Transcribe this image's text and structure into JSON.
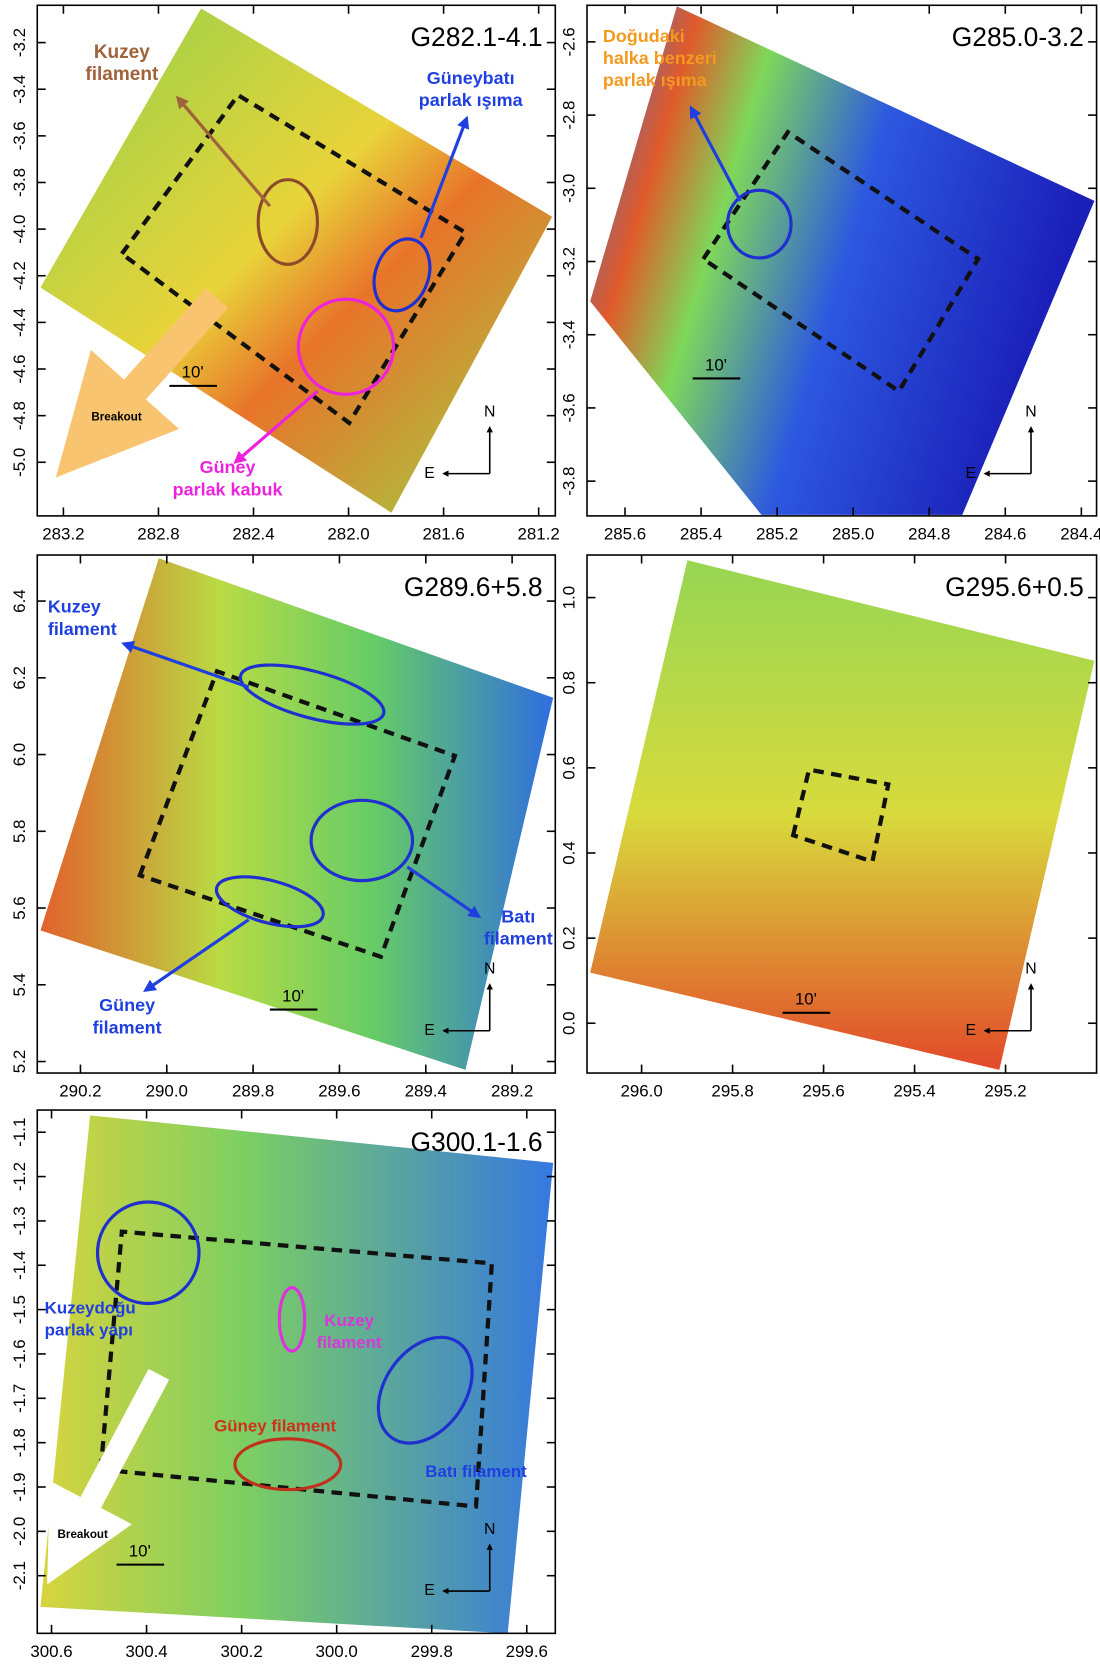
{
  "chart_data": [
    {
      "type": "image",
      "title": "G282.1-4.1",
      "xlim": [
        283.31,
        281.13
      ],
      "ylim": [
        -5.23,
        -3.04
      ],
      "xticks": [
        283.2,
        282.8,
        282.4,
        {
          "value": 282.0,
          "label": "282.0"
        },
        281.6,
        281.2
      ],
      "yticks": [
        -3.2,
        -3.4,
        -3.6,
        -3.8,
        {
          "value": -4.0,
          "label": "-4.0"
        },
        -4.2,
        -4.4,
        -4.6,
        -4.8,
        {
          "value": -5.0,
          "label": "-5.0"
        }
      ],
      "annotations": [
        {
          "lines": [
            "Kuzey",
            "filament"
          ],
          "color": "#a0623a"
        },
        {
          "lines": [
            "Güneybatı",
            "parlak ışıma"
          ],
          "color": "#1f3fe0"
        },
        {
          "lines": [
            "Breakout"
          ],
          "color": "#000000"
        },
        {
          "lines": [
            "Güney",
            "parlak kabuk"
          ],
          "color": "#ee22dd"
        }
      ],
      "compass": [
        "N",
        "E"
      ],
      "scale_bar": "10'"
    },
    {
      "type": "image",
      "title": "G285.0-3.2",
      "xlim": [
        285.7,
        284.36
      ],
      "ylim": [
        -3.895,
        -2.5
      ],
      "xticks": [
        285.6,
        285.4,
        285.2,
        {
          "value": 285.0,
          "label": "285.0"
        },
        284.8,
        284.6,
        284.4
      ],
      "yticks": [
        -2.6,
        -2.8,
        {
          "value": -3.0,
          "label": "-3.0"
        },
        -3.2,
        -3.4,
        -3.6,
        -3.8
      ],
      "annotations": [
        {
          "lines": [
            "Doğudaki",
            "halka benzeri",
            "parlak ışıma"
          ],
          "color": "#f39a1e"
        }
      ],
      "compass": [
        "N",
        "E"
      ],
      "scale_bar": "10'"
    },
    {
      "type": "image",
      "title": "G289.6+5.8",
      "xlim": [
        290.3,
        289.1
      ],
      "ylim": [
        5.17,
        6.52
      ],
      "xticks": [
        290.2,
        {
          "value": 290.0,
          "label": "290.0"
        },
        289.8,
        289.6,
        289.4,
        289.2
      ],
      "yticks": [
        5.2,
        5.4,
        5.6,
        5.8,
        {
          "value": 6.0,
          "label": "6.0"
        },
        6.2,
        6.4
      ],
      "annotations": [
        {
          "lines": [
            "Kuzey",
            "filament"
          ],
          "color": "#1f3fe0"
        },
        {
          "lines": [
            "Batı",
            "filament"
          ],
          "color": "#1f3fe0"
        },
        {
          "lines": [
            "Güney",
            "filament"
          ],
          "color": "#1f3fe0"
        }
      ],
      "compass": [
        "N",
        "E"
      ],
      "scale_bar": "10'"
    },
    {
      "type": "image",
      "title": "G295.6+0.5",
      "xlim": [
        296.12,
        295.0
      ],
      "ylim": [
        -0.117,
        1.1
      ],
      "xticks": [
        {
          "value": 296.0,
          "label": "296.0"
        },
        295.8,
        295.6,
        295.4,
        295.2
      ],
      "yticks": [
        {
          "value": 0.0,
          "label": "0.0"
        },
        0.2,
        0.4,
        0.6,
        0.8,
        {
          "value": 1.0,
          "label": "1.0"
        }
      ],
      "compass": [
        "N",
        "E"
      ],
      "scale_bar": "10'"
    },
    {
      "type": "image",
      "title": "G300.1-1.6",
      "xlim": [
        300.63,
        299.54
      ],
      "ylim": [
        -2.23,
        -1.05
      ],
      "xticks": [
        300.6,
        300.4,
        300.2,
        {
          "value": 300.0,
          "label": "300.0"
        },
        299.8,
        299.6
      ],
      "yticks": [
        -1.1,
        -1.2,
        -1.3,
        -1.4,
        -1.5,
        -1.6,
        -1.7,
        -1.8,
        -1.9,
        {
          "value": -2.0,
          "label": "-2.0"
        },
        -2.1
      ],
      "annotations": [
        {
          "lines": [
            "Kuzeydoğu",
            "parlak yapı"
          ],
          "color": "#1f3fe0"
        },
        {
          "lines": [
            "Kuzey",
            "filament"
          ],
          "color": "#dd33dd"
        },
        {
          "lines": [
            "Güney filament"
          ],
          "color": "#d0311c"
        },
        {
          "lines": [
            "Batı filament"
          ],
          "color": "#1f3fe0"
        },
        {
          "lines": [
            "Breakout"
          ],
          "color": "#000000"
        }
      ],
      "compass": [
        "N",
        "E"
      ],
      "scale_bar": "10'"
    }
  ]
}
